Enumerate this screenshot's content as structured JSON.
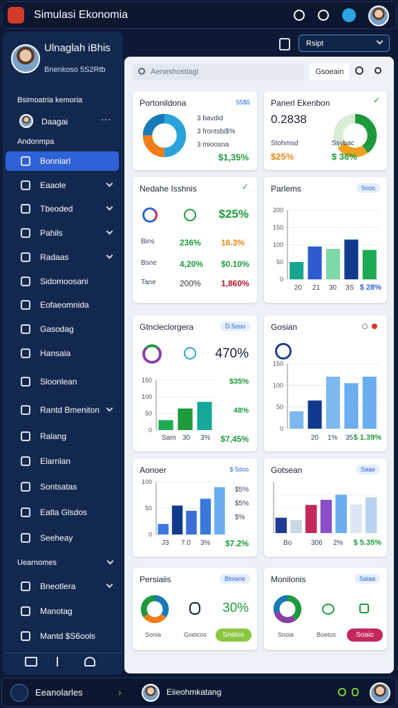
{
  "header": {
    "title": "Simulasi Ekonomia"
  },
  "sidebar": {
    "profile": {
      "name": "Ulnaglah iBhis",
      "subtitle": "Bnenkoso 5S2Rtb"
    },
    "section": "Bsimoatria kemoria",
    "user": "Daagai",
    "group": "Andonmpa",
    "items": [
      "Bonnlarl",
      "Eaaole",
      "Tbeoded",
      "Pahils",
      "Radaas",
      "Sidomoosani",
      "Eofaeomnida",
      "Gasodag",
      "Hansaia",
      "Sloonlean",
      "Rantd Bmeniton",
      "Ralang",
      "Elarnlan",
      "Sontsatas",
      "Eatla Glsdos",
      "Seeheay"
    ],
    "section2": "Uearnomes",
    "items2": [
      "Bneotlera",
      "Manotag",
      "Mantd $S6ools"
    ]
  },
  "toolbar": {
    "dropdown": "Rsipt"
  },
  "search": {
    "placeholder": "Aeneshostiagi",
    "button": "Gsoeain"
  },
  "cards": [
    {
      "title": "Portonildona",
      "tag": "S5$5",
      "lines": [
        "3 bavdid",
        "3 frontsbi$%",
        "3 mioosna"
      ],
      "value": "$1,35%",
      "donut": {
        "values": [
          50,
          25,
          25
        ],
        "colors": [
          "#29a3dc",
          "#f07d1a",
          "#1779b5"
        ]
      }
    },
    {
      "title": "Panerl Ekenbon",
      "value": "0.2838",
      "label1": "Stohmsd",
      "value1": "$25%",
      "label2": "Ssvbac",
      "value2": "$ 36%",
      "donut": {
        "values": [
          40,
          25,
          35
        ],
        "colors": [
          "#1e9a3c",
          "#f0a020",
          "#d9ecd6"
        ]
      }
    },
    {
      "title": "Nedahe Isshnis",
      "value": "$25%",
      "rows": [
        [
          "Bins",
          "236%",
          "16.3%"
        ],
        [
          "Bsne",
          "4,20%",
          "$0.10%"
        ],
        [
          "Tane",
          "200%",
          "1,860%"
        ]
      ]
    },
    {
      "title": "Parlems",
      "tag": "5ooo",
      "xlabels": [
        "20",
        "21",
        "30",
        "3S"
      ],
      "value": "$ 28%",
      "chart": {
        "ylim": [
          0,
          200
        ],
        "yticks": [
          0,
          50,
          100,
          150,
          200
        ],
        "values": [
          50,
          95,
          88,
          115,
          85
        ],
        "colors": [
          "#17a58f",
          "#2e5bd0",
          "#7fd8a8",
          "#123a8c",
          "#1eaa55"
        ]
      }
    },
    {
      "title": "Gtncleclorgera",
      "tag": "D.5ooo",
      "value": "470%",
      "side": [
        "$35%",
        "48%",
        "$7,45%"
      ],
      "xlabels": [
        "Sam",
        "30",
        "3%"
      ],
      "chart": {
        "ylim": [
          0,
          150
        ],
        "yticks": [
          0,
          50,
          100,
          150
        ],
        "values": [
          30,
          65,
          85
        ],
        "colors": [
          "#1eaa55",
          "#1e9a3c",
          "#14a99a"
        ]
      }
    },
    {
      "title": "Gosian",
      "xlabels": [
        "20",
        "1%",
        "35"
      ],
      "value": "$ 1.39%",
      "chart": {
        "ylim": [
          0,
          150
        ],
        "yticks": [
          0,
          50,
          100,
          150
        ],
        "values": [
          40,
          65,
          120,
          105,
          120
        ],
        "colors": [
          "#7db8ee",
          "#123a8c",
          "#7db8ee",
          "#6aaef0",
          "#6aaef0"
        ]
      }
    },
    {
      "title": "Aonoer",
      "tag": "$ 5doo",
      "side": [
        "$5%",
        "$5%",
        "$%"
      ],
      "xlabels": [
        "J3",
        "7.0",
        "3%"
      ],
      "value": "$7.2%",
      "chart": {
        "ylim": [
          0,
          100
        ],
        "yticks": [
          0,
          50,
          100
        ],
        "values": [
          20,
          55,
          45,
          68,
          90
        ],
        "colors": [
          "#3a78e0",
          "#123a8c",
          "#3a6fd8",
          "#3a78e0",
          "#6aaef0"
        ]
      }
    },
    {
      "title": "Gotsean",
      "tag": "Saae",
      "xlabels": [
        "Bo",
        "306",
        "2%"
      ],
      "value": "$ 5.35%",
      "chart": {
        "ylim": [
          0,
          100
        ],
        "values": [
          30,
          25,
          55,
          65,
          75,
          56,
          70
        ],
        "colors": [
          "#1e3c94",
          "#c9d6e6",
          "#c4285a",
          "#8a4fc8",
          "#6aaef0",
          "#dbe6f2",
          "#b9d3ee"
        ]
      }
    },
    {
      "title": "Persiaiis",
      "tag": "Bloiaoe",
      "value": "30%",
      "label1": "Sonia",
      "label2": "Goeicos",
      "button": "Snaloo",
      "donut": {
        "values": [
          35,
          30,
          35
        ],
        "colors": [
          "#1779b5",
          "#f07d1a",
          "#1e9a3c"
        ]
      }
    },
    {
      "title": "Monilonis",
      "tag": "Saiaa",
      "label1": "Snoia",
      "label2": "Boetos",
      "button": "Soaio",
      "donut": {
        "values": [
          40,
          30,
          30
        ],
        "colors": [
          "#1e9a3c",
          "#8a3fa8",
          "#1779b5"
        ]
      }
    }
  ],
  "footer": {
    "title": "Eeanolarles",
    "user": "Eiieohmkatang"
  }
}
